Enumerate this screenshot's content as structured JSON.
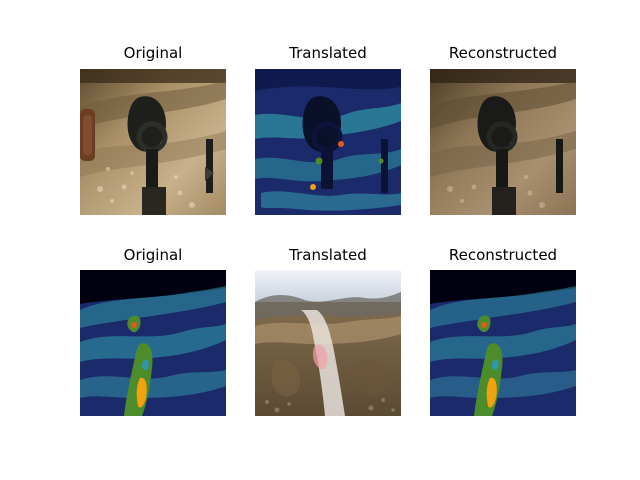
{
  "figure": {
    "rows": [
      {
        "panels": [
          {
            "title": "Original",
            "style": "game"
          },
          {
            "title": "Translated",
            "style": "heatmap-game"
          },
          {
            "title": "Reconstructed",
            "style": "game-recon"
          }
        ]
      },
      {
        "panels": [
          {
            "title": "Original",
            "style": "heatmap-road"
          },
          {
            "title": "Translated",
            "style": "canyon"
          },
          {
            "title": "Reconstructed",
            "style": "heatmap-road-recon"
          }
        ]
      }
    ]
  },
  "colors": {
    "sand": "#b9a27a",
    "dirt": "#6b5638",
    "navy": "#1b2a6b",
    "teal": "#2f97a6",
    "green": "#4c8c2a",
    "orange": "#f2a20f",
    "sky": "#dfe6ee"
  }
}
